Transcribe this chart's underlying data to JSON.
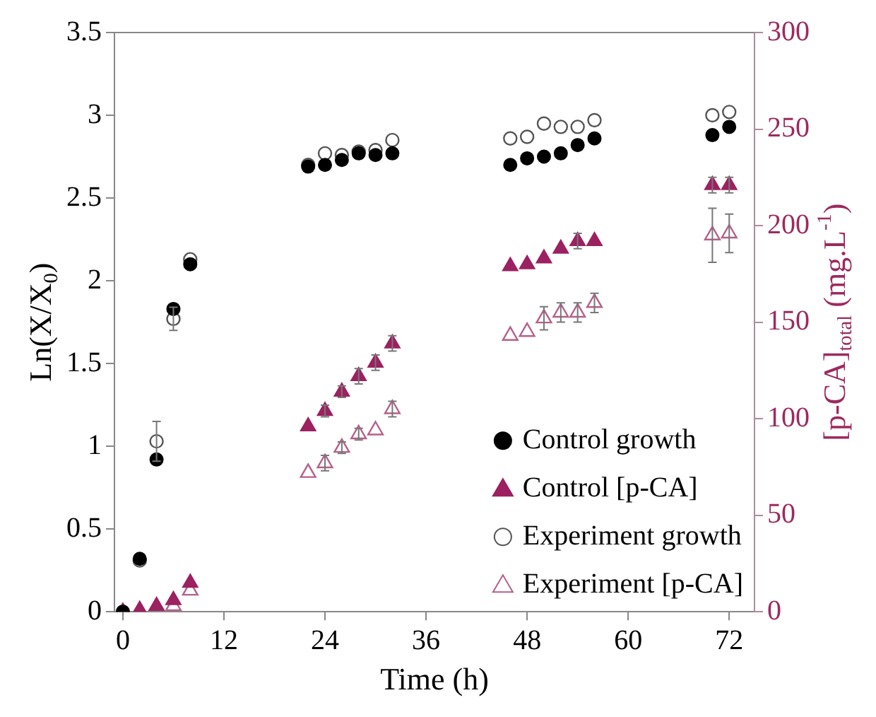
{
  "chart_data": {
    "type": "scatter",
    "xlabel": "Time (h)",
    "ylabel": "Ln(X/X$_{0}$)",
    "y2label": "[p-CA]$_{total}$ (mg.L$^{-1}$)",
    "x": [
      0,
      2,
      4,
      6,
      8,
      22,
      24,
      26,
      28,
      30,
      32,
      46,
      48,
      50,
      52,
      54,
      56,
      70,
      72
    ],
    "xlim": [
      -1,
      75
    ],
    "xticks": [
      0,
      12,
      24,
      36,
      48,
      60,
      72
    ],
    "ylim": [
      0,
      3.5
    ],
    "yticks": [
      0,
      0.5,
      1,
      1.5,
      2,
      2.5,
      3,
      3.5
    ],
    "y2lim": [
      0,
      300
    ],
    "y2ticks": [
      0,
      50,
      100,
      150,
      200,
      250,
      300
    ],
    "grid": false,
    "legend": "bottom right",
    "series": [
      {
        "name": "Control growth",
        "color": "#000000",
        "marker": "circle",
        "values": [
          0,
          0.32,
          0.92,
          1.83,
          2.1,
          2.69,
          2.7,
          2.73,
          2.77,
          2.76,
          2.77,
          2.7,
          2.74,
          2.75,
          2.77,
          2.82,
          2.86,
          2.88,
          2.93
        ]
      },
      {
        "name": "Control [p-CA]",
        "color": "#9c2160",
        "marker": "triangle",
        "axis": "y2",
        "values": [
          0,
          1,
          3,
          6,
          15,
          96,
          104,
          114,
          122,
          129,
          139,
          179,
          180,
          183,
          188,
          192,
          192,
          221,
          221
        ],
        "errors": [
          null,
          null,
          null,
          null,
          null,
          null,
          3,
          3,
          4,
          4,
          4,
          null,
          null,
          null,
          null,
          4,
          null,
          4,
          4
        ]
      },
      {
        "name": "Experiment growth",
        "color": "#555555",
        "marker": "circle",
        "values": [
          0,
          0.31,
          1.03,
          1.77,
          2.13,
          2.7,
          2.77,
          2.76,
          2.78,
          2.79,
          2.85,
          2.86,
          2.87,
          2.95,
          2.93,
          2.93,
          2.97,
          3.0,
          3.02
        ],
        "errors": [
          null,
          null,
          0.12,
          0.07,
          null,
          null,
          null,
          null,
          null,
          null,
          null,
          null,
          null,
          null,
          null,
          null,
          null,
          null,
          null
        ]
      },
      {
        "name": "Experiment [p-CA]",
        "color": "#b5608a",
        "marker": "triangle",
        "axis": "y2",
        "values": [
          null,
          null,
          null,
          3,
          11,
          72,
          77,
          85,
          92,
          94,
          105,
          143,
          145,
          152,
          155,
          155,
          160,
          195,
          196
        ],
        "errors": [
          null,
          null,
          null,
          null,
          null,
          null,
          4,
          3,
          3,
          null,
          4,
          null,
          null,
          6,
          5,
          5,
          5,
          14,
          10
        ]
      }
    ]
  }
}
